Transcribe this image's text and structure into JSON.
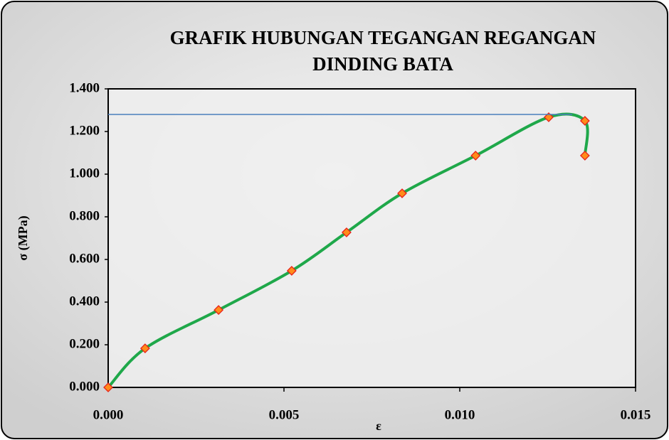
{
  "chart_data": {
    "type": "scatter",
    "title": [
      "GRAFIK HUBUNGAN TEGANGAN REGANGAN",
      "DINDING BATA"
    ],
    "x_label": "ε",
    "y_label": "σ (MPa)",
    "series": [
      {
        "color": "#1fa84a",
        "smooth": true,
        "marker": "diamond",
        "marker_color": "#ff8c1a",
        "marker_edge": "#e8201a",
        "x": [
          0,
          0.00105,
          0.00314,
          0.00522,
          0.00678,
          0.00836,
          0.01045,
          0.01253,
          0.01356,
          0.01356
        ],
        "values": [
          0,
          0.183,
          0.363,
          0.547,
          0.727,
          0.91,
          1.087,
          1.267,
          1.25,
          1.087
        ]
      },
      {
        "color": "#4a7ebb",
        "smooth": false,
        "x": [
          0,
          0.0132
        ],
        "values": [
          1.28,
          1.28
        ]
      }
    ],
    "xlim": [
      0,
      0.015
    ],
    "ylim": [
      0,
      1.4
    ],
    "xticks": [
      {
        "value": 0,
        "label": "0.000"
      },
      {
        "value": 0.005,
        "label": "0.005"
      },
      {
        "value": 0.01,
        "label": "0.010"
      },
      {
        "value": 0.015,
        "label": "0.015"
      }
    ],
    "yticks": [
      {
        "value": 0,
        "label": "0.000"
      },
      {
        "value": 0.2,
        "label": "0.200"
      },
      {
        "value": 0.4,
        "label": "0.400"
      },
      {
        "value": 0.6,
        "label": "0.600"
      },
      {
        "value": 0.8,
        "label": "0.800"
      },
      {
        "value": 1.0,
        "label": "1.000"
      },
      {
        "value": 1.2,
        "label": "1.200"
      },
      {
        "value": 1.4,
        "label": "1.400"
      }
    ],
    "grid": false
  }
}
